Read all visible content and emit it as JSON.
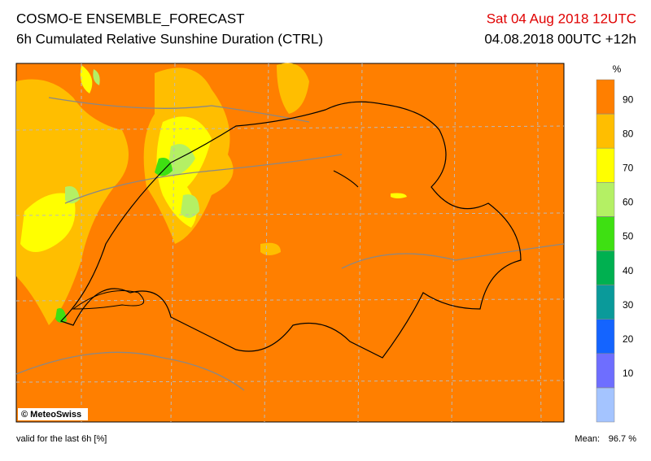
{
  "header": {
    "title": "COSMO-E ENSEMBLE_FORECAST",
    "subtitle": "6h Cumulated Relative Sunshine Duration (CTRL)",
    "valid_date": "Sat 04 Aug 2018 12UTC",
    "run": "04.08.2018 00UTC +12h"
  },
  "map": {
    "copyright": "© MeteoSwiss"
  },
  "colorbar": {
    "unit": "%",
    "ticks": [
      10,
      20,
      30,
      40,
      50,
      60,
      70,
      80,
      90
    ],
    "colors": [
      "#a4c4ff",
      "#6e6eff",
      "#1464ff",
      "#0a9a9a",
      "#00b050",
      "#3ee012",
      "#b4f064",
      "#ffff00",
      "#ffbe00",
      "#ff7f00"
    ]
  },
  "footer": {
    "note": "valid for the last 6h [%]",
    "mean_label": "Mean:",
    "mean_value": "96.7 %"
  }
}
